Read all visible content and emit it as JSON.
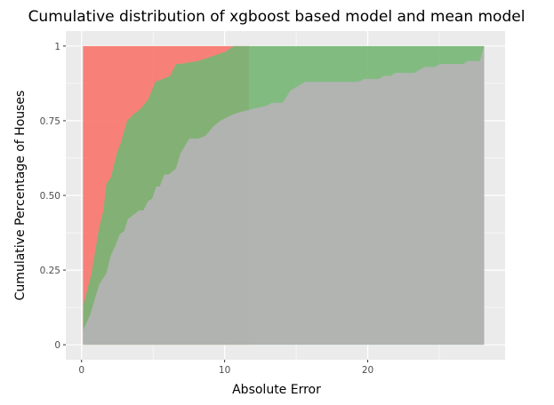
{
  "chart_data": {
    "type": "area",
    "title": "Cumulative distribution of xgboost based model and mean model",
    "xlabel": "Absolute Error",
    "ylabel": "Cumulative Percentage of Houses",
    "xlim": [
      -1.1,
      29.6
    ],
    "ylim": [
      -0.05,
      1.05
    ],
    "x_ticks": [
      0,
      10,
      20
    ],
    "x_tick_labels": [
      "0",
      "10",
      "20"
    ],
    "y_ticks": [
      0,
      0.25,
      0.5,
      0.75,
      1
    ],
    "y_tick_labels": [
      "0",
      "0.25",
      "0.50",
      "0.75",
      "1"
    ],
    "grid": true,
    "legend": "none",
    "series": [
      {
        "color": "#F8766D",
        "points": [
          [
            0.1,
            0.13
          ],
          [
            0.1,
            1
          ],
          [
            11.7,
            1
          ]
        ]
      },
      {
        "color": "#75B674",
        "points": [
          [
            0.12,
            0.13
          ],
          [
            0.7,
            0.24
          ],
          [
            1.22,
            0.39
          ],
          [
            1.53,
            0.45
          ],
          [
            1.74,
            0.54
          ],
          [
            2.05,
            0.56
          ],
          [
            2.46,
            0.64
          ],
          [
            2.77,
            0.68
          ],
          [
            3.19,
            0.75
          ],
          [
            3.6,
            0.77
          ],
          [
            4.12,
            0.79
          ],
          [
            4.64,
            0.82
          ],
          [
            5.16,
            0.88
          ],
          [
            5.67,
            0.89
          ],
          [
            6.19,
            0.9
          ],
          [
            6.6,
            0.94
          ],
          [
            6.91,
            0.94
          ],
          [
            8.16,
            0.95
          ],
          [
            8.78,
            0.96
          ],
          [
            9.4,
            0.97
          ],
          [
            10.02,
            0.98
          ],
          [
            10.64,
            1.0
          ],
          [
            11.68,
            1.0
          ],
          [
            28.14,
            1.0
          ]
        ]
      },
      {
        "color": "#B3B3B3",
        "points": [
          [
            0.12,
            0.05
          ],
          [
            0.6,
            0.1
          ],
          [
            0.91,
            0.15
          ],
          [
            1.22,
            0.2
          ],
          [
            1.74,
            0.24
          ],
          [
            2.05,
            0.3
          ],
          [
            2.36,
            0.33
          ],
          [
            2.67,
            0.37
          ],
          [
            2.98,
            0.38
          ],
          [
            3.23,
            0.42
          ],
          [
            4.02,
            0.45
          ],
          [
            4.33,
            0.45
          ],
          [
            4.64,
            0.48
          ],
          [
            4.95,
            0.49
          ],
          [
            5.22,
            0.53
          ],
          [
            5.47,
            0.53
          ],
          [
            5.78,
            0.57
          ],
          [
            6.09,
            0.57
          ],
          [
            6.6,
            0.59
          ],
          [
            6.91,
            0.64
          ],
          [
            7.53,
            0.69
          ],
          [
            8.16,
            0.69
          ],
          [
            8.68,
            0.7
          ],
          [
            9.19,
            0.73
          ],
          [
            9.71,
            0.75
          ],
          [
            10.54,
            0.77
          ],
          [
            11.16,
            0.78
          ],
          [
            11.99,
            0.79
          ],
          [
            12.92,
            0.8
          ],
          [
            13.3,
            0.81
          ],
          [
            14.06,
            0.81
          ],
          [
            14.58,
            0.85
          ],
          [
            15.61,
            0.88
          ],
          [
            19.34,
            0.88
          ],
          [
            19.75,
            0.89
          ],
          [
            20.79,
            0.89
          ],
          [
            21.1,
            0.9
          ],
          [
            21.6,
            0.9
          ],
          [
            21.9,
            0.91
          ],
          [
            23.27,
            0.91
          ],
          [
            23.58,
            0.92
          ],
          [
            23.99,
            0.93
          ],
          [
            24.72,
            0.93
          ],
          [
            25.03,
            0.94
          ],
          [
            26.69,
            0.94
          ],
          [
            27.0,
            0.95
          ],
          [
            27.83,
            0.95
          ],
          [
            28.14,
            1.0
          ]
        ]
      }
    ]
  }
}
